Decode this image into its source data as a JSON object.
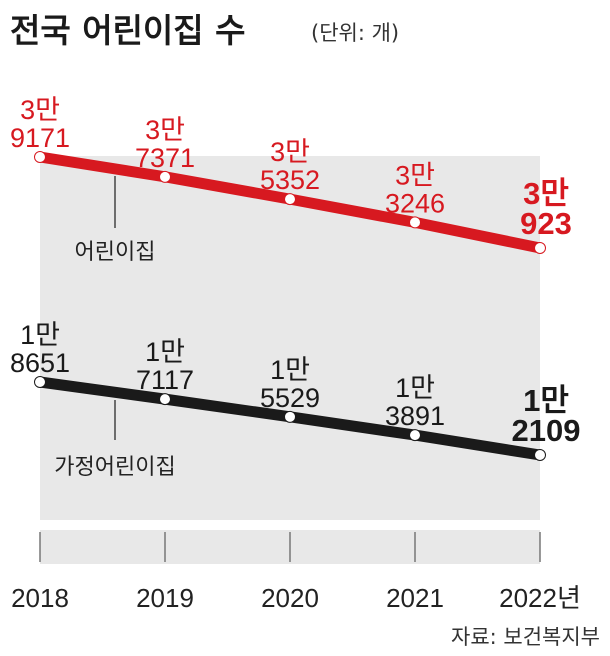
{
  "header": {
    "title": "전국 어린이집 수",
    "unit": "(단위: 개)"
  },
  "source": "자료: 보건복지부",
  "chart_data": {
    "type": "line",
    "title": "전국 어린이집 수",
    "unit": "(단위: 개)",
    "x": [
      "2018",
      "2019",
      "2020",
      "2021",
      "2022"
    ],
    "x_tick_labels": [
      "2018",
      "2019",
      "2020",
      "2021",
      "2022년"
    ],
    "ylim": [
      0,
      40000
    ],
    "grid": false,
    "series": [
      {
        "name": "어린이집",
        "color": "#d71920",
        "values": [
          39171,
          37371,
          35352,
          33246,
          30923
        ],
        "labels": [
          [
            "3만",
            "9171"
          ],
          [
            "3만",
            "7371"
          ],
          [
            "3만",
            "5352"
          ],
          [
            "3만",
            "3246"
          ],
          [
            "3만",
            "923"
          ]
        ]
      },
      {
        "name": "가정어린이집",
        "color": "#1a1a1a",
        "values": [
          18651,
          17117,
          15529,
          13891,
          12109
        ],
        "labels": [
          [
            "1만",
            "8651"
          ],
          [
            "1만",
            "7117"
          ],
          [
            "1만",
            "5529"
          ],
          [
            "1만",
            "3891"
          ],
          [
            "1만",
            "2109"
          ]
        ]
      }
    ]
  }
}
